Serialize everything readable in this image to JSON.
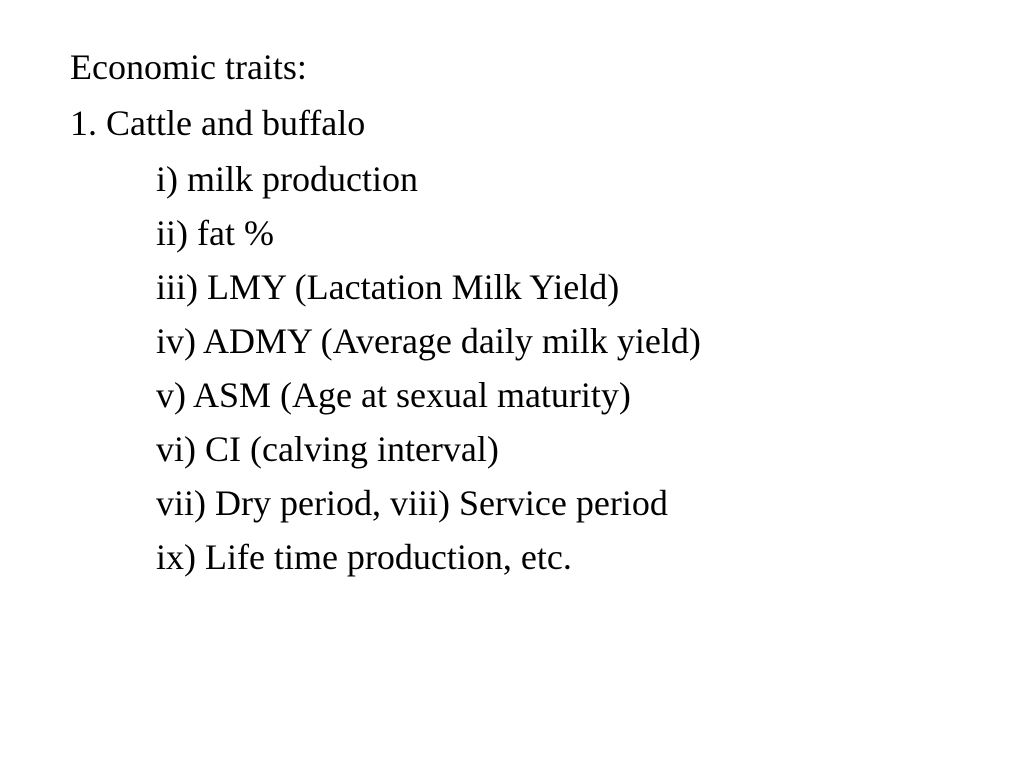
{
  "slide": {
    "title": "Economic traits:",
    "numbered_item": "1.  Cattle and buffalo",
    "sub_items": [
      "i) milk production",
      "ii) fat %",
      "iii) LMY (Lactation Milk Yield)",
      "iv) ADMY (Average daily milk yield)",
      "v) ASM (Age at sexual maturity)",
      "vi) CI (calving interval)",
      "vii) Dry period, viii) Service period",
      "ix) Life time production, etc."
    ],
    "font_family": "Comic Sans MS",
    "font_size_pt": 28,
    "text_color": "#000000",
    "background_color": "#ffffff"
  }
}
